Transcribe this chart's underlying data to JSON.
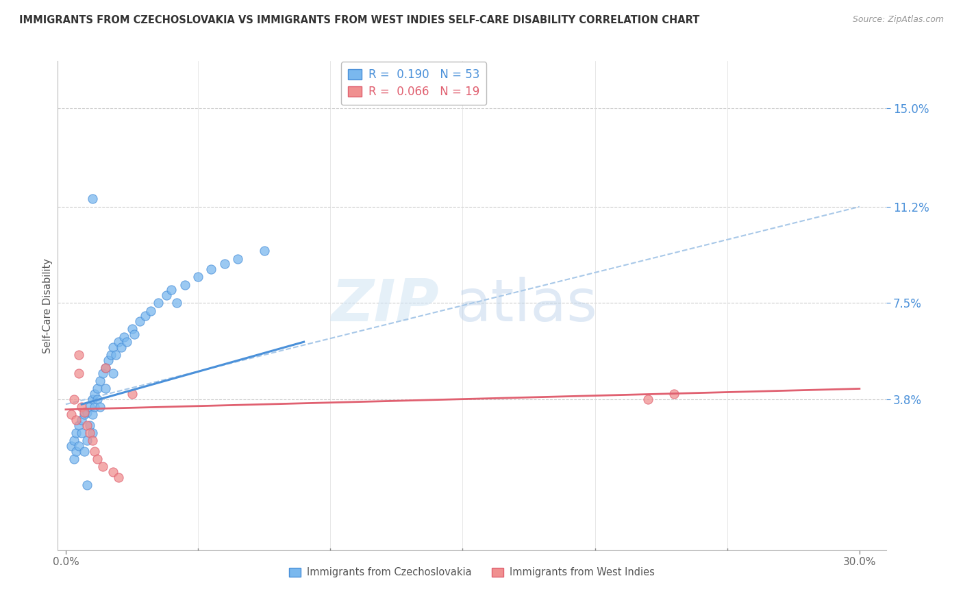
{
  "title": "IMMIGRANTS FROM CZECHOSLOVAKIA VS IMMIGRANTS FROM WEST INDIES SELF-CARE DISABILITY CORRELATION CHART",
  "source": "Source: ZipAtlas.com",
  "ylabel": "Self-Care Disability",
  "ytick_labels": [
    "3.8%",
    "7.5%",
    "11.2%",
    "15.0%"
  ],
  "ytick_values": [
    0.038,
    0.075,
    0.112,
    0.15
  ],
  "xtick_labels": [
    "0.0%",
    "30.0%"
  ],
  "xtick_values": [
    0.0,
    0.3
  ],
  "xlim": [
    -0.003,
    0.31
  ],
  "ylim": [
    -0.02,
    0.168
  ],
  "legend_r1": "R =  0.190",
  "legend_n1": "N = 53",
  "legend_r2": "R =  0.066",
  "legend_n2": "N = 19",
  "color_blue": "#7ab8ee",
  "color_pink": "#f09090",
  "color_blue_line": "#4a90d9",
  "color_pink_line": "#e06070",
  "color_dashed": "#a8c8e8",
  "watermark_zip": "ZIP",
  "watermark_atlas": "atlas",
  "series1_name": "Immigrants from Czechoslovakia",
  "series2_name": "Immigrants from West Indies",
  "czech_x": [
    0.002,
    0.003,
    0.003,
    0.004,
    0.004,
    0.005,
    0.005,
    0.006,
    0.006,
    0.007,
    0.007,
    0.008,
    0.008,
    0.009,
    0.009,
    0.01,
    0.01,
    0.01,
    0.011,
    0.011,
    0.012,
    0.012,
    0.013,
    0.013,
    0.014,
    0.015,
    0.015,
    0.016,
    0.017,
    0.018,
    0.018,
    0.019,
    0.02,
    0.021,
    0.022,
    0.023,
    0.025,
    0.026,
    0.028,
    0.03,
    0.032,
    0.035,
    0.038,
    0.04,
    0.042,
    0.045,
    0.05,
    0.055,
    0.06,
    0.065,
    0.075,
    0.01,
    0.008
  ],
  "czech_y": [
    0.02,
    0.022,
    0.015,
    0.018,
    0.025,
    0.028,
    0.02,
    0.03,
    0.025,
    0.032,
    0.018,
    0.033,
    0.022,
    0.035,
    0.028,
    0.038,
    0.032,
    0.025,
    0.04,
    0.035,
    0.038,
    0.042,
    0.045,
    0.035,
    0.048,
    0.05,
    0.042,
    0.053,
    0.055,
    0.058,
    0.048,
    0.055,
    0.06,
    0.058,
    0.062,
    0.06,
    0.065,
    0.063,
    0.068,
    0.07,
    0.072,
    0.075,
    0.078,
    0.08,
    0.075,
    0.082,
    0.085,
    0.088,
    0.09,
    0.092,
    0.095,
    0.115,
    0.005
  ],
  "wi_x": [
    0.002,
    0.003,
    0.004,
    0.005,
    0.005,
    0.006,
    0.007,
    0.008,
    0.009,
    0.01,
    0.011,
    0.012,
    0.014,
    0.015,
    0.018,
    0.02,
    0.025,
    0.22,
    0.23
  ],
  "wi_y": [
    0.032,
    0.038,
    0.03,
    0.055,
    0.048,
    0.035,
    0.033,
    0.028,
    0.025,
    0.022,
    0.018,
    0.015,
    0.012,
    0.05,
    0.01,
    0.008,
    0.04,
    0.038,
    0.04
  ],
  "cz_line_x": [
    0.006,
    0.09
  ],
  "cz_line_y": [
    0.036,
    0.06
  ],
  "wi_line_x": [
    0.0,
    0.3
  ],
  "wi_line_y": [
    0.034,
    0.042
  ],
  "dash_line_x": [
    0.0,
    0.3
  ],
  "dash_line_y": [
    0.036,
    0.112
  ]
}
